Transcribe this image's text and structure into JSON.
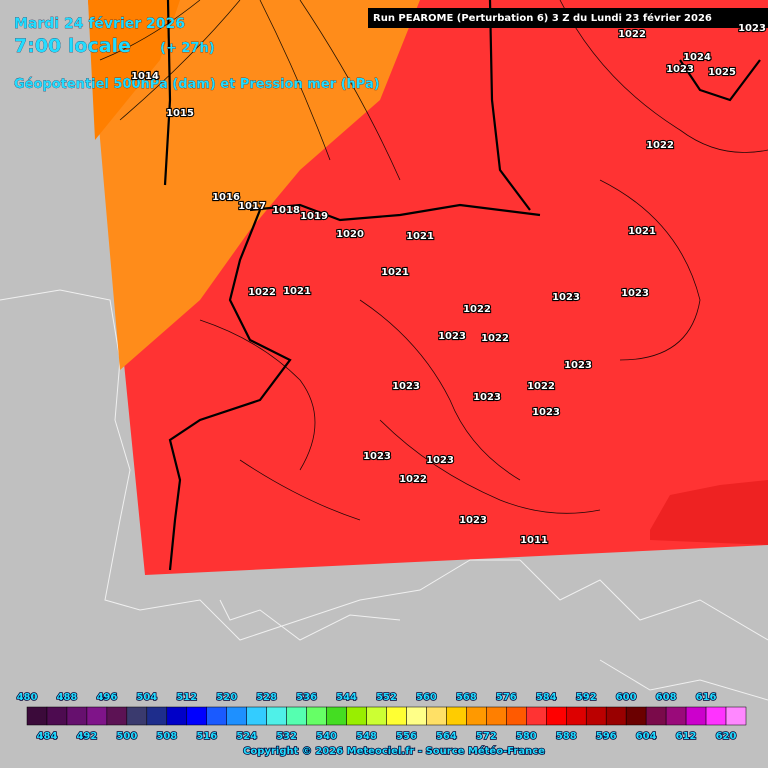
{
  "header": {
    "date": "Mardi 24 février 2026",
    "time": "7:00 locale",
    "lead": "(+ 27h)",
    "field": "Géopotentiel 500hPa (dam) et Pression mer (hPa)",
    "run": "Run PEAROME (Perturbation 6) 3 Z du Lundi 23 février 2026"
  },
  "isobar_labels": [
    1022,
    1023,
    1024,
    1023,
    1025,
    1014,
    1015,
    1022,
    1016,
    1017,
    1018,
    1019,
    1020,
    1021,
    1021,
    1021,
    1022,
    1021,
    1023,
    1023,
    1022,
    1023,
    1022,
    1023,
    1023,
    1022,
    1023,
    1023,
    1023,
    1023,
    1022,
    1023,
    1011
  ],
  "colorbar": {
    "ticks": [
      480,
      484,
      488,
      492,
      496,
      500,
      504,
      508,
      512,
      516,
      520,
      524,
      528,
      532,
      536,
      540,
      544,
      548,
      552,
      556,
      560,
      564,
      568,
      572,
      576,
      580,
      584,
      588,
      592,
      596,
      600,
      604,
      608,
      612,
      616,
      620
    ],
    "colors": [
      "#3b0a3a",
      "#4d0b50",
      "#66106e",
      "#7f1489",
      "#5c1254",
      "#3a3a6e",
      "#1e2d8c",
      "#0000c8",
      "#0000ff",
      "#1a5aff",
      "#1e90ff",
      "#33ccff",
      "#4ff0e8",
      "#55ffb0",
      "#66ff66",
      "#44dd22",
      "#99ee00",
      "#ccff33",
      "#ffff33",
      "#ffff88",
      "#ffe066",
      "#ffcc00",
      "#ff9900",
      "#ff7f00",
      "#ff5a00",
      "#ff3333",
      "#ff0000",
      "#dd0000",
      "#bb0000",
      "#990000",
      "#6b0000",
      "#7a0a4a",
      "#9a0a7a",
      "#cc00cc",
      "#ff33ff",
      "#ff88ff"
    ]
  },
  "footer": {
    "copyright": "Copyright © 2026 Meteociel.fr - Source Météo-France"
  }
}
